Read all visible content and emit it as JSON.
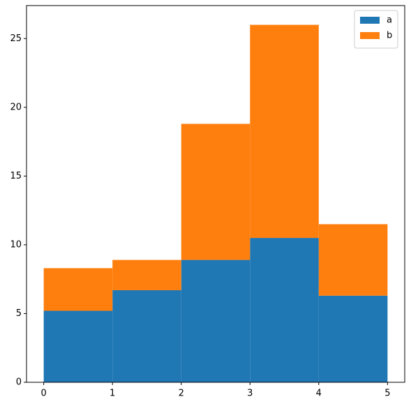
{
  "chart_data": {
    "type": "histogram",
    "bins": [
      0,
      1,
      2,
      3,
      4,
      5
    ],
    "stacked": true,
    "series": [
      {
        "name": "a",
        "color": "#1f77b4",
        "values": [
          5.2,
          6.7,
          8.9,
          10.5,
          6.3
        ]
      },
      {
        "name": "b",
        "color": "#ff7f0e",
        "values": [
          3.1,
          2.2,
          9.9,
          15.5,
          5.2
        ]
      }
    ],
    "xlim": [
      -0.25,
      5.25
    ],
    "xticks": [
      0,
      1,
      2,
      3,
      4,
      5
    ],
    "ylim": [
      0,
      27.4
    ],
    "yticks": [
      0,
      5,
      10,
      15,
      20,
      25
    ],
    "grid": false,
    "legend": "upper right"
  }
}
